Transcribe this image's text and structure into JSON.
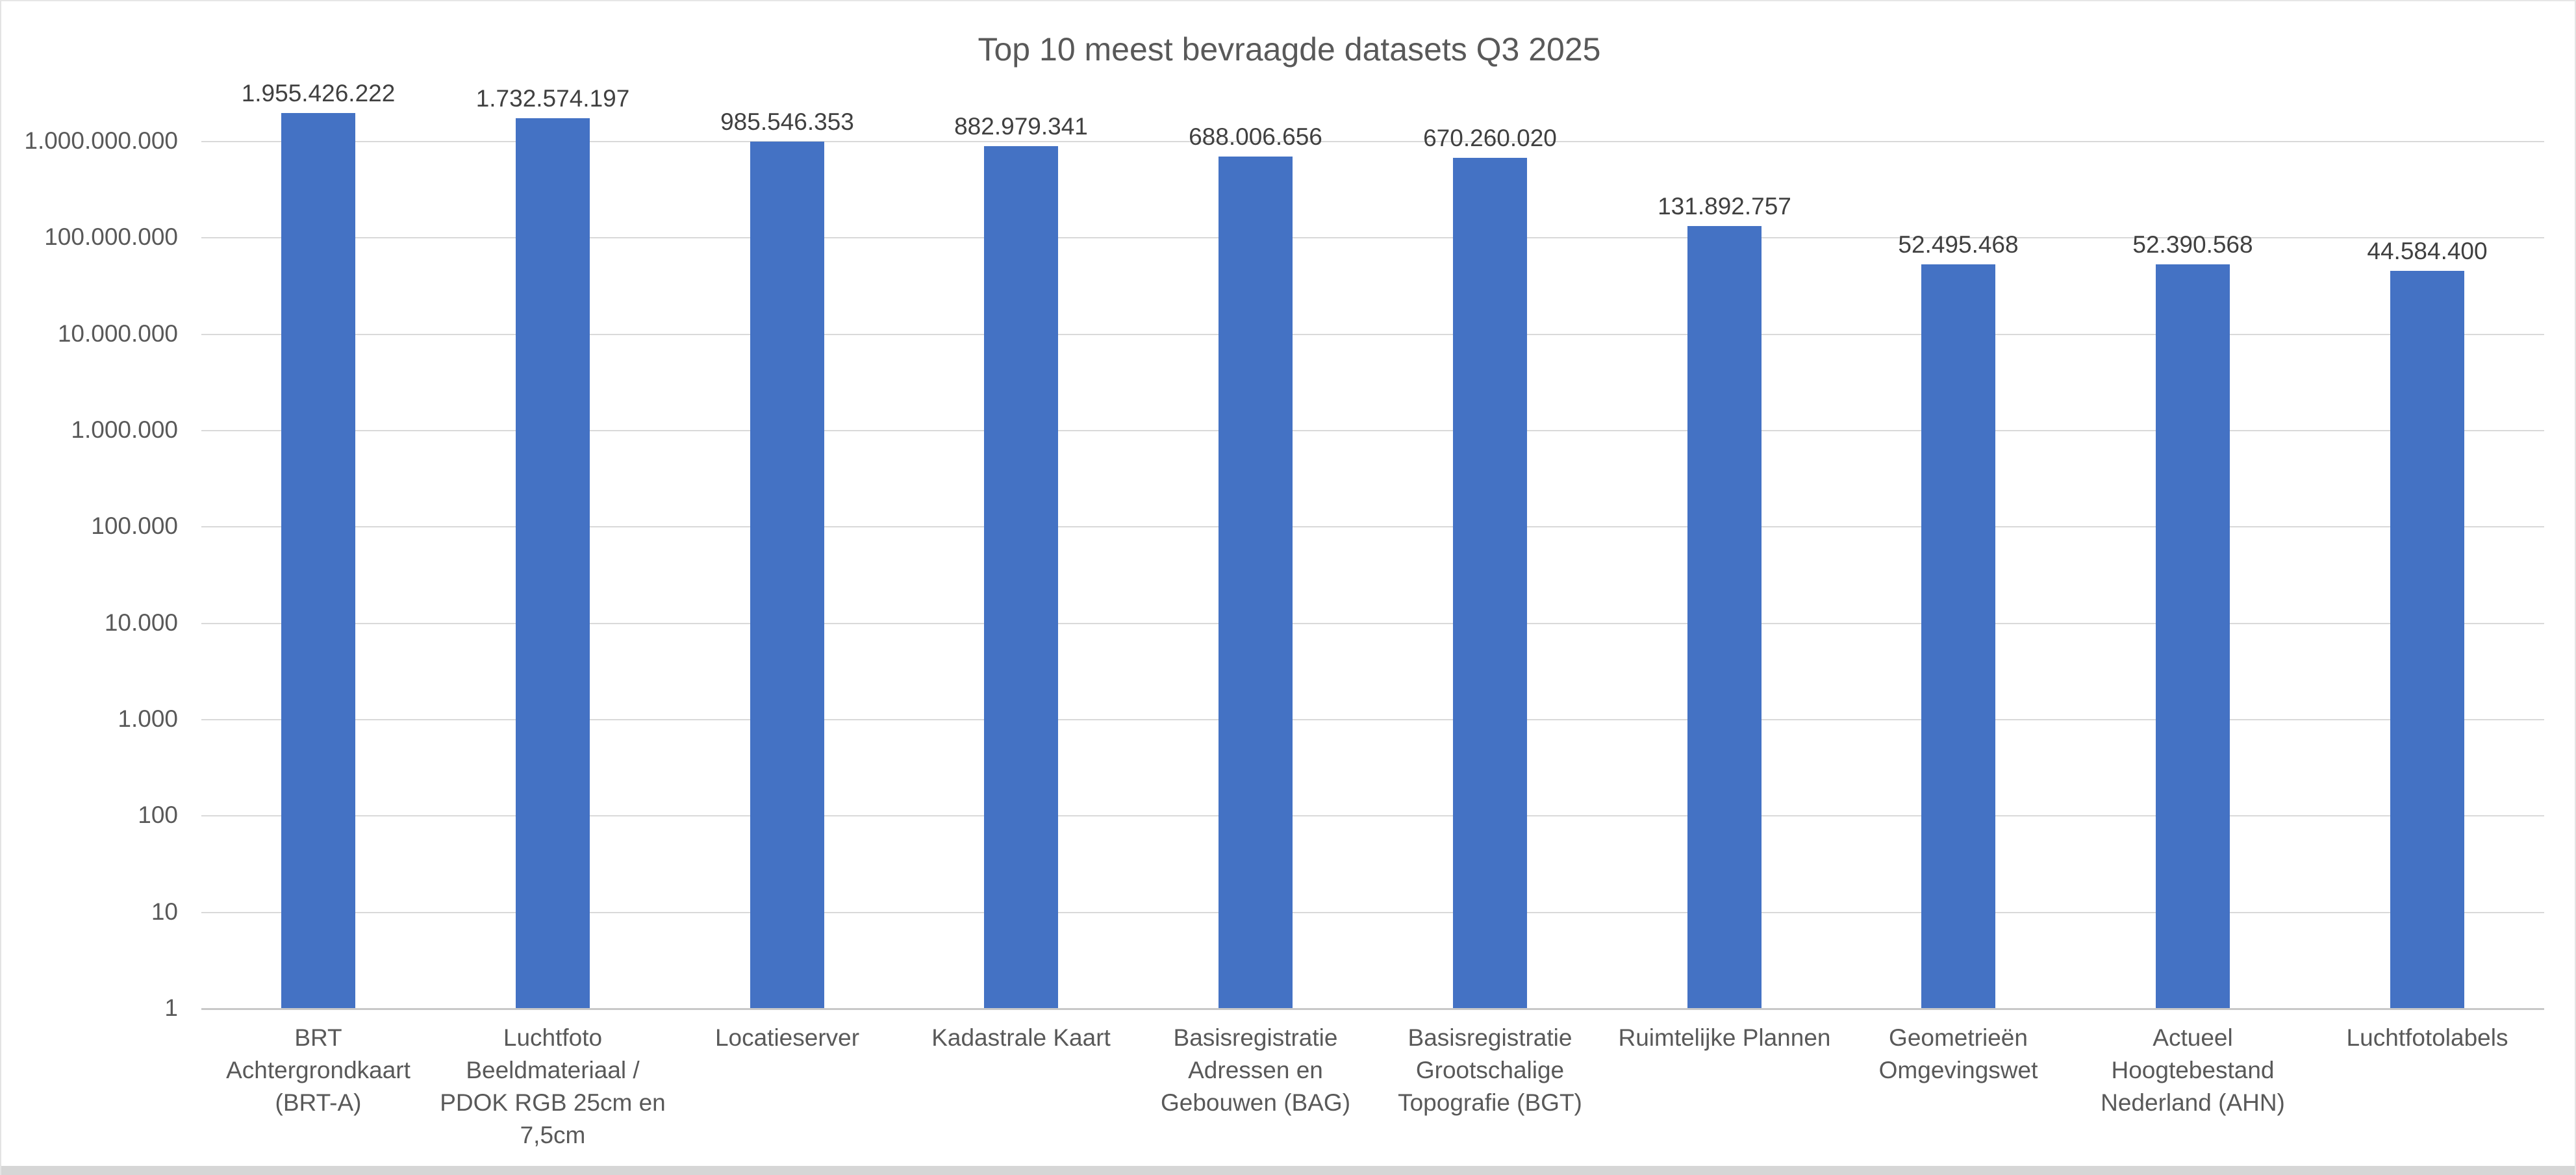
{
  "chart_data": {
    "type": "bar",
    "title": "Top 10 meest bevraagde datasets Q3 2025",
    "xlabel": "",
    "ylabel": "",
    "y_scale": "log10",
    "ylim": [
      1,
      1000000000
    ],
    "grid": true,
    "legend": "none",
    "y_ticks": [
      "1.000.000.000",
      "100.000.000",
      "10.000.000",
      "1.000.000",
      "100.000",
      "10.000",
      "1.000",
      "100",
      "10",
      "1"
    ],
    "categories": [
      "BRT Achtergrondkaart (BRT-A)",
      "Luchtfoto Beeldmateriaal / PDOK RGB 25cm en 7,5cm",
      "Locatieserver",
      "Kadastrale Kaart",
      "Basisregistratie Adressen en Gebouwen (BAG)",
      "Basisregistratie Grootschalige Topografie (BGT)",
      "Ruimtelijke Plannen",
      "Geometrieën Omgevingswet",
      "Actueel Hoogtebestand Nederland (AHN)",
      "Luchtfotolabels"
    ],
    "values": [
      1955426222,
      1732574197,
      985546353,
      882979341,
      688006656,
      670260020,
      131892757,
      52495468,
      52390568,
      44584400
    ],
    "value_labels": [
      "1.955.426.222",
      "1.732.574.197",
      "985.546.353",
      "882.979.341",
      "688.006.656",
      "670.260.020",
      "131.892.757",
      "52.495.468",
      "52.390.568",
      "44.584.400"
    ],
    "colors": {
      "bar": "#4472C4",
      "gridline": "#D9D9D9",
      "axis_line": "#C8C8C8",
      "axis_text": "#595959",
      "value_text": "#404040",
      "title_text": "#595959"
    }
  }
}
